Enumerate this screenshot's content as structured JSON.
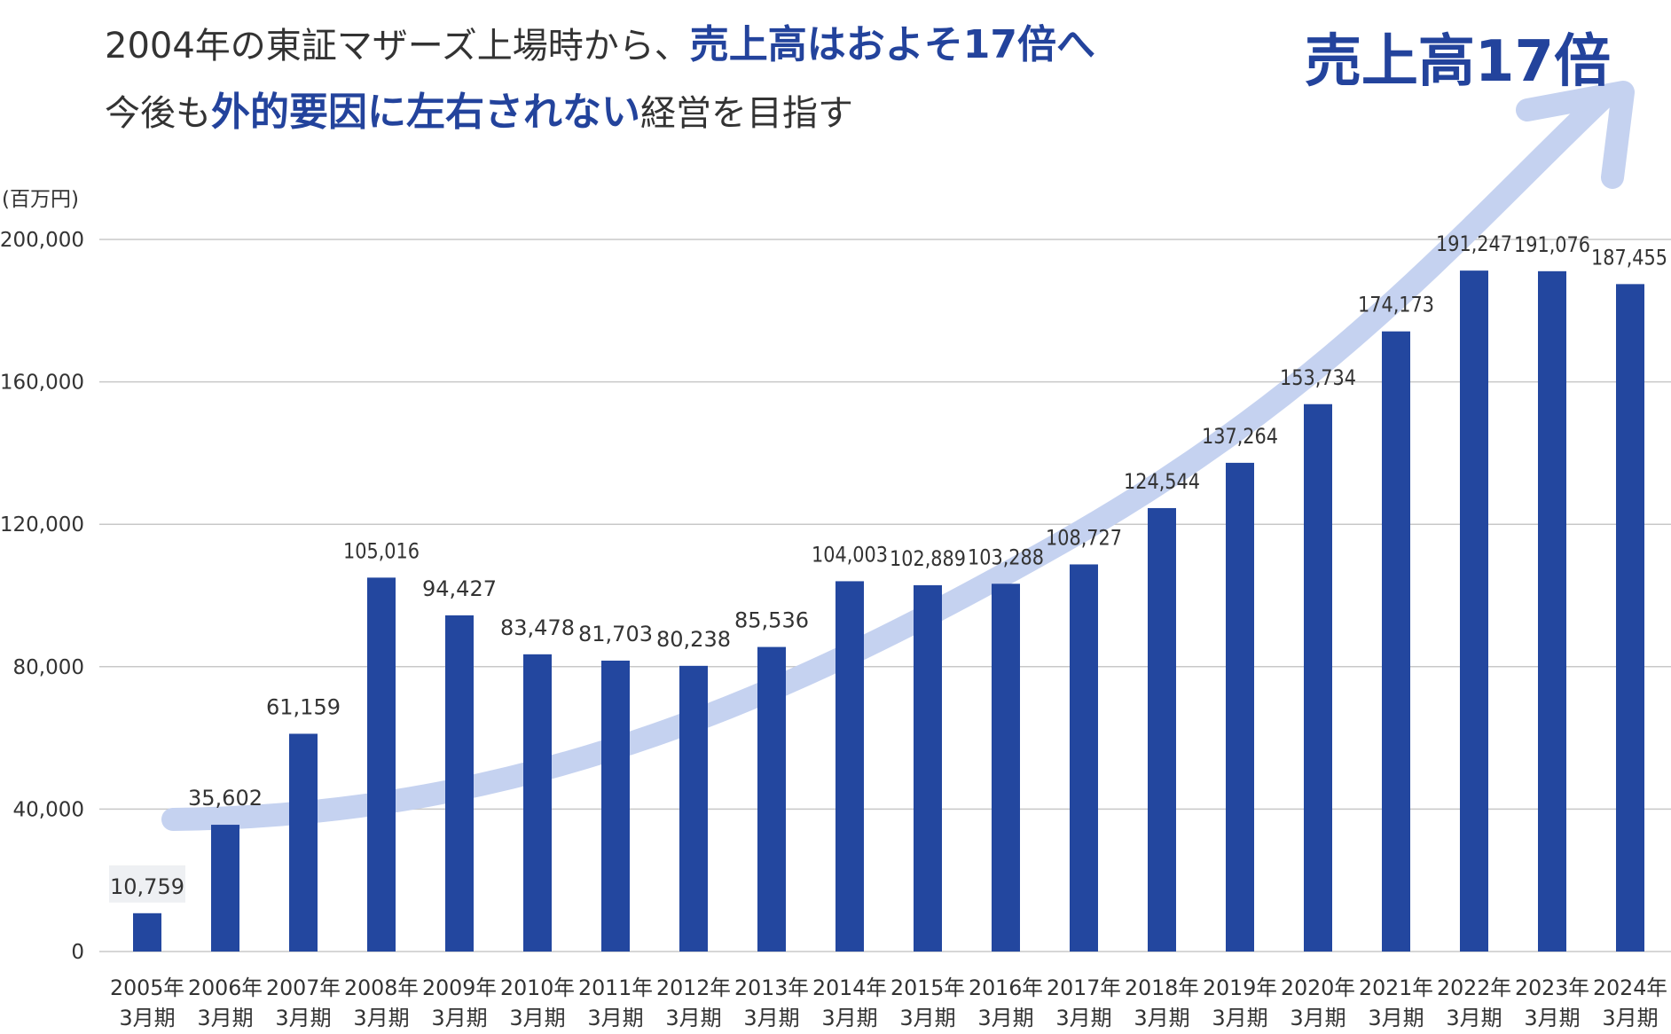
{
  "headline": {
    "line1_pre": "2004年の東証マザーズ上場時から、",
    "line1_highlight": "売上高はおよそ17倍へ",
    "line2_pre": "今後も",
    "line2_highlight": "外的要因に左右されない",
    "line2_post": "経営を目指す"
  },
  "arrow_label": "売上高17倍",
  "colors": {
    "bar": "#23479f",
    "arrow": "#c5d2f0",
    "highlight": "#23439c",
    "grid": "#c8c8c8",
    "first_label_bg": "#eef0f3"
  },
  "chart_data": {
    "type": "bar",
    "unit_label": "(百万円)",
    "categories": [
      [
        "2005年",
        "3月期"
      ],
      [
        "2006年",
        "3月期"
      ],
      [
        "2007年",
        "3月期"
      ],
      [
        "2008年",
        "3月期"
      ],
      [
        "2009年",
        "3月期"
      ],
      [
        "2010年",
        "3月期"
      ],
      [
        "2011年",
        "3月期"
      ],
      [
        "2012年",
        "3月期"
      ],
      [
        "2013年",
        "3月期"
      ],
      [
        "2014年",
        "3月期"
      ],
      [
        "2015年",
        "3月期"
      ],
      [
        "2016年",
        "3月期"
      ],
      [
        "2017年",
        "3月期"
      ],
      [
        "2018年",
        "3月期"
      ],
      [
        "2019年",
        "3月期"
      ],
      [
        "2020年",
        "3月期"
      ],
      [
        "2021年",
        "3月期"
      ],
      [
        "2022年",
        "3月期"
      ],
      [
        "2023年",
        "3月期"
      ],
      [
        "2024年",
        "3月期"
      ]
    ],
    "values": [
      10759,
      35602,
      61159,
      105016,
      94427,
      83478,
      81703,
      80238,
      85536,
      104003,
      102889,
      103288,
      108727,
      124544,
      137264,
      153734,
      174173,
      191247,
      191076,
      187455
    ],
    "value_labels": [
      "10,759",
      "35,602",
      "61,159",
      "105,016",
      "94,427",
      "83,478",
      "81,703",
      "80,238",
      "85,536",
      "104,003",
      "102,889",
      "103,288",
      "108,727",
      "124,544",
      "137,264",
      "153,734",
      "174,173",
      "191,247",
      "191,076",
      "187,455"
    ],
    "yticks": [
      0,
      40000,
      80000,
      120000,
      160000,
      200000
    ],
    "ytick_labels": [
      "0",
      "40,000",
      "80,000",
      "120,000",
      "160,000",
      "200,000"
    ],
    "ylim": [
      0,
      200000
    ],
    "grid": true
  }
}
